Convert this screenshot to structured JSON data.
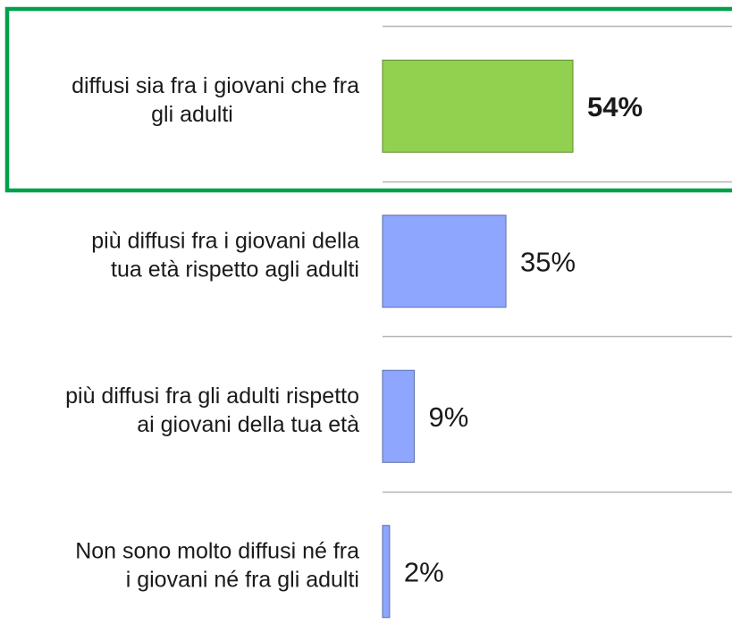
{
  "chart_data": {
    "type": "bar",
    "orientation": "horizontal",
    "categories": [
      "diffusi sia fra i giovani che fra gli adulti",
      "più diffusi fra i giovani della tua età rispetto agli adulti",
      "più diffusi fra gli adulti rispetto ai giovani della tua età",
      "Non sono molto diffusi né fra i giovani né fra gli adulti"
    ],
    "category_lines": [
      [
        "diffusi sia fra i giovani che fra",
        "gli adulti"
      ],
      [
        "più diffusi fra i giovani della",
        "tua età rispetto agli adulti"
      ],
      [
        "più diffusi fra gli adulti rispetto",
        "ai giovani della tua età"
      ],
      [
        "Non sono molto diffusi né fra",
        "i giovani né fra gli adulti"
      ]
    ],
    "values": [
      54,
      35,
      9,
      2
    ],
    "value_labels": [
      "54%",
      "35%",
      "9%",
      "2%"
    ],
    "unit": "%",
    "highlighted_index": 0,
    "colors": {
      "bar": "#8fa6ff",
      "highlight_bar": "#92d050",
      "highlight_box": "#00a04a",
      "separator": "#b5b5b5",
      "bar_border": "#5a6fa8",
      "highlight_bar_border": "#5e8c2e"
    },
    "grid": false,
    "legend": "none",
    "xlim": [
      0,
      54
    ]
  }
}
